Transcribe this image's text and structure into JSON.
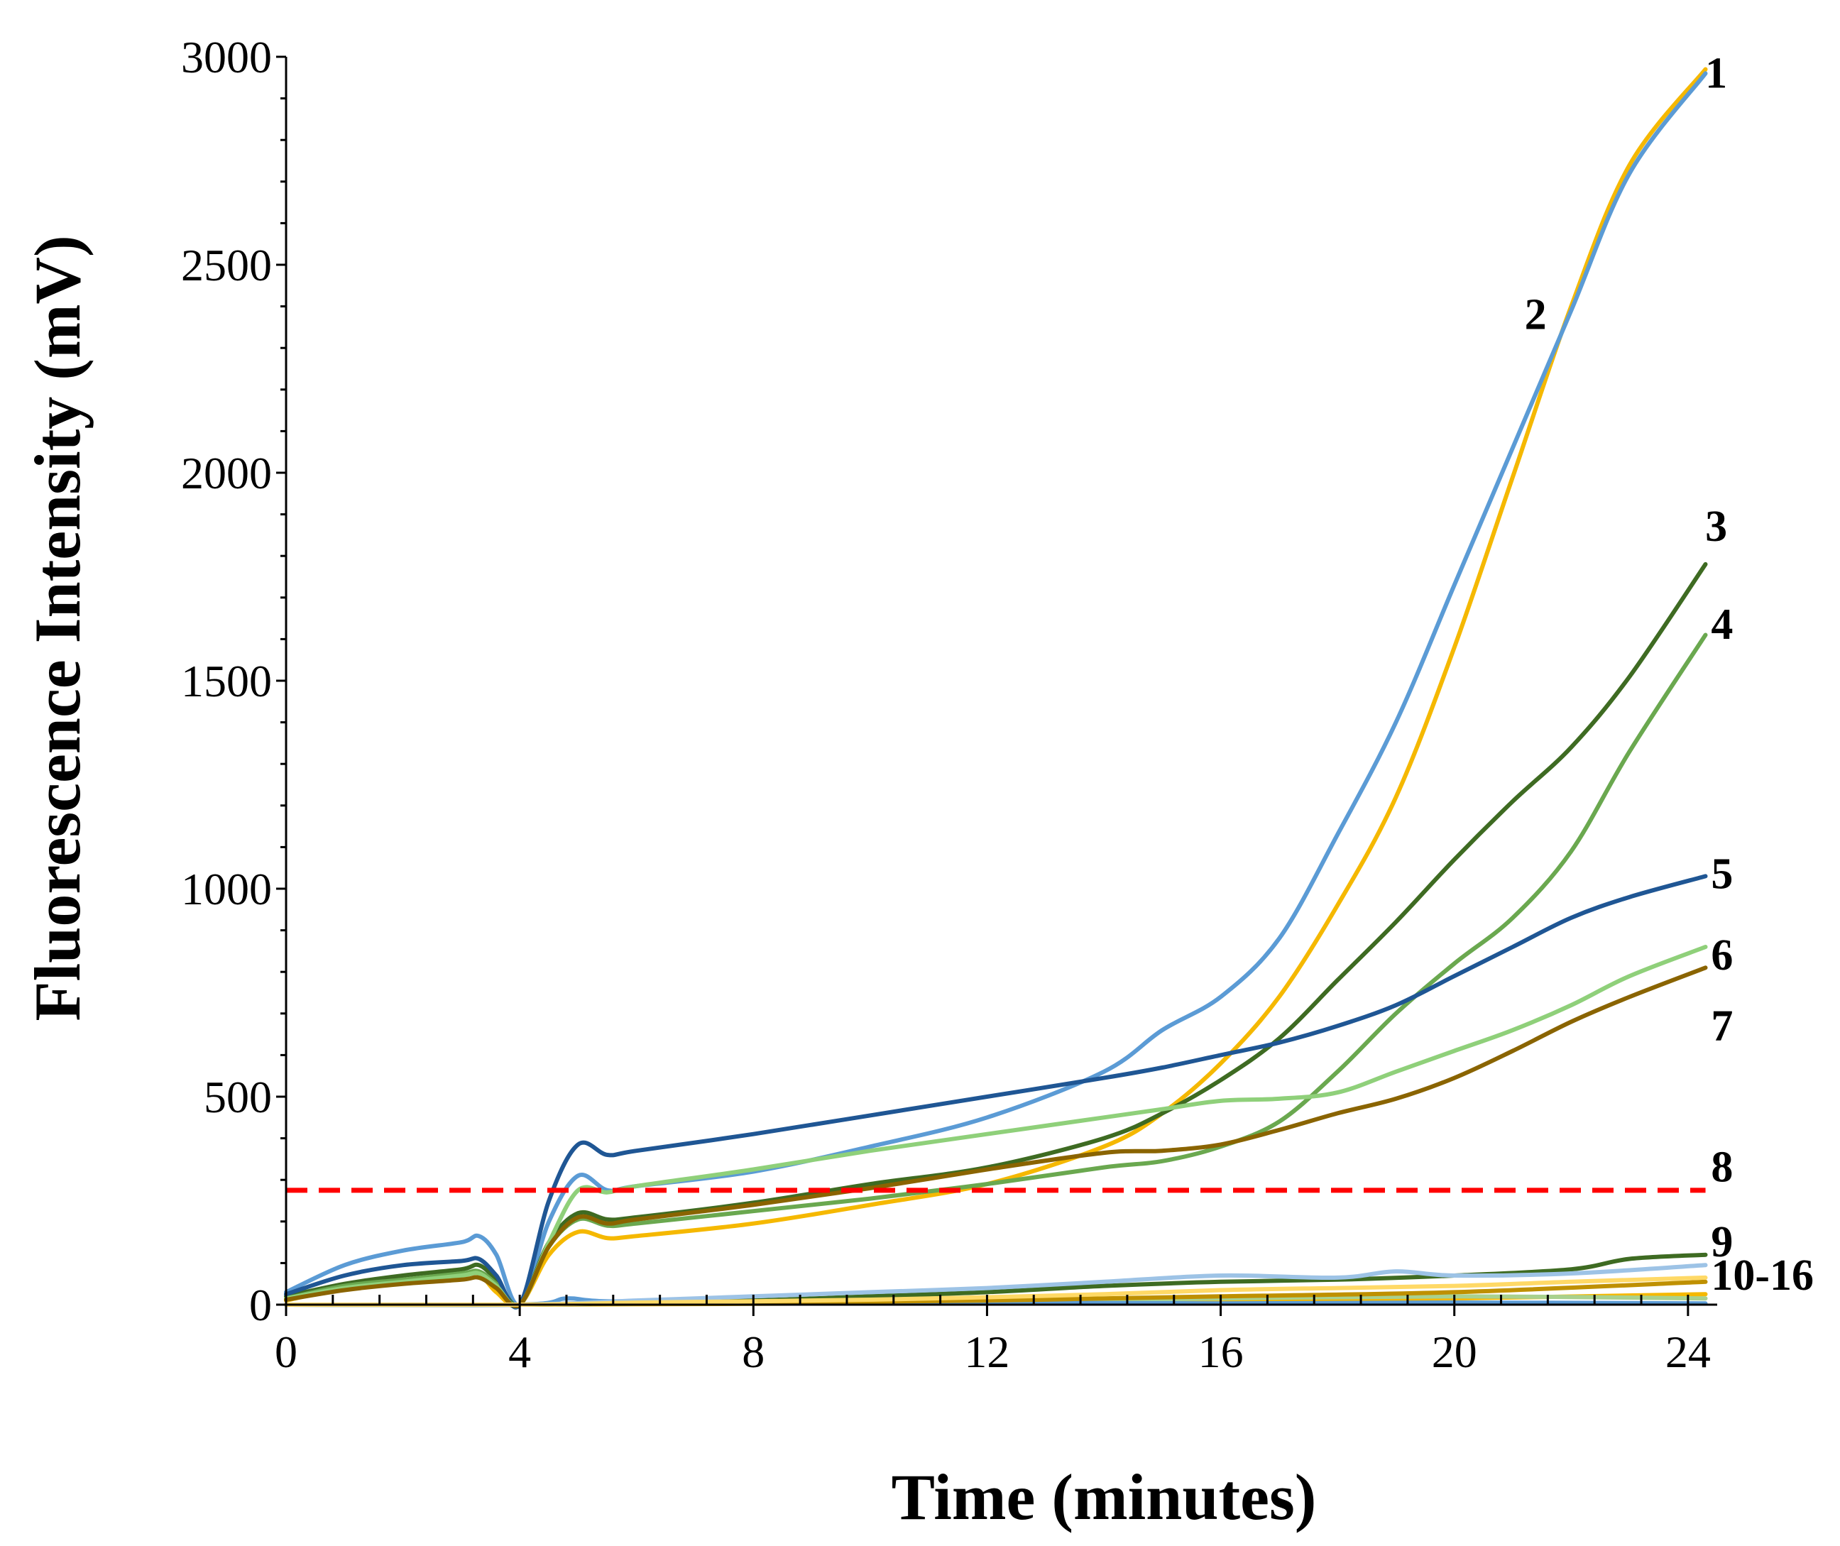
{
  "chart_data": {
    "type": "line",
    "title": "",
    "xlabel": "Time (minutes)",
    "ylabel": "Fluorescence Intensity  (mV)",
    "xlim": [
      0,
      24.5
    ],
    "ylim": [
      0,
      3000
    ],
    "xticks": [
      0,
      4,
      8,
      12,
      16,
      20,
      24
    ],
    "yticks": [
      0,
      500,
      1000,
      1500,
      2000,
      2500,
      3000
    ],
    "x_minor_step": 0.8,
    "grid": false,
    "threshold": {
      "value": 275,
      "x_start": 0,
      "x_end": 24.3,
      "color": "#ff0000",
      "style": "dashed"
    },
    "series": [
      {
        "name": "1",
        "color": "#f5b800",
        "label_x": 24.1,
        "label_y": 2960,
        "x": [
          0,
          1,
          2,
          3,
          3.3,
          3.6,
          4,
          4.5,
          5,
          5.5,
          6,
          8,
          10,
          12,
          14,
          15,
          16,
          17,
          18,
          19,
          20,
          21,
          22,
          23,
          24.3
        ],
        "y": [
          10,
          40,
          55,
          70,
          75,
          30,
          0,
          120,
          175,
          160,
          165,
          195,
          240,
          290,
          380,
          460,
          580,
          740,
          960,
          1220,
          1580,
          1990,
          2400,
          2740,
          2970
        ]
      },
      {
        "name": "2",
        "color": "#5b9bd5",
        "label_x": 21.7,
        "label_y": 2380,
        "x": [
          0,
          1,
          2,
          3,
          3.3,
          3.6,
          4,
          4.5,
          5,
          5.5,
          6,
          8,
          10,
          12,
          14,
          15,
          16,
          17,
          18,
          19,
          20,
          21,
          22,
          23,
          24.3
        ],
        "y": [
          30,
          95,
          130,
          150,
          165,
          120,
          0,
          200,
          310,
          275,
          285,
          320,
          380,
          450,
          560,
          660,
          740,
          880,
          1130,
          1400,
          1730,
          2060,
          2390,
          2720,
          2960
        ]
      },
      {
        "name": "3",
        "color": "#3e6b22",
        "label_x": 24.1,
        "label_y": 1870,
        "x": [
          0,
          1,
          2,
          3,
          3.3,
          3.6,
          4,
          4.5,
          5,
          5.5,
          6,
          8,
          10,
          12,
          14,
          15,
          16,
          17,
          18,
          19,
          20,
          21,
          22,
          23,
          24.3
        ],
        "y": [
          20,
          50,
          70,
          85,
          95,
          60,
          0,
          150,
          220,
          205,
          210,
          245,
          290,
          330,
          400,
          460,
          540,
          640,
          780,
          920,
          1070,
          1210,
          1340,
          1510,
          1780
        ]
      },
      {
        "name": "4",
        "color": "#6aa84f",
        "label_x": 24.2,
        "label_y": 1635,
        "x": [
          0,
          1,
          2,
          3,
          3.3,
          3.6,
          4,
          4.5,
          5,
          5.5,
          6,
          8,
          10,
          12,
          14,
          15,
          16,
          17,
          18,
          19,
          20,
          21,
          22,
          23,
          24.3
        ],
        "y": [
          15,
          45,
          60,
          75,
          80,
          50,
          0,
          140,
          205,
          190,
          195,
          225,
          255,
          290,
          330,
          345,
          380,
          440,
          560,
          700,
          820,
          930,
          1090,
          1330,
          1610
        ]
      },
      {
        "name": "5",
        "color": "#1f5694",
        "label_x": 24.2,
        "label_y": 1035,
        "x": [
          0,
          1,
          2,
          3,
          3.3,
          3.6,
          4,
          4.5,
          5,
          5.5,
          6,
          8,
          10,
          12,
          14,
          15,
          16,
          17,
          18,
          19,
          20,
          21,
          22,
          23,
          24.3
        ],
        "y": [
          25,
          70,
          95,
          105,
          110,
          70,
          0,
          250,
          385,
          360,
          370,
          410,
          455,
          500,
          545,
          570,
          600,
          630,
          670,
          720,
          790,
          860,
          930,
          980,
          1030
        ]
      },
      {
        "name": "6",
        "color": "#8fd07a",
        "label_x": 24.2,
        "label_y": 840,
        "x": [
          0,
          1,
          2,
          3,
          3.3,
          3.6,
          4,
          4.5,
          5,
          5.5,
          6,
          8,
          10,
          12,
          14,
          15,
          16,
          17,
          18,
          19,
          20,
          21,
          22,
          23,
          24.3
        ],
        "y": [
          15,
          40,
          55,
          70,
          75,
          45,
          0,
          150,
          275,
          270,
          285,
          325,
          370,
          410,
          450,
          470,
          490,
          495,
          510,
          560,
          610,
          660,
          720,
          790,
          860
        ]
      },
      {
        "name": "7",
        "color": "#8a6400",
        "label_x": 24.2,
        "label_y": 670,
        "x": [
          0,
          1,
          2,
          3,
          3.3,
          3.6,
          4,
          4.5,
          5,
          5.5,
          6,
          8,
          10,
          12,
          14,
          15,
          16,
          17,
          18,
          19,
          20,
          21,
          22,
          23,
          24.3
        ],
        "y": [
          12,
          35,
          50,
          60,
          65,
          40,
          0,
          140,
          210,
          195,
          205,
          240,
          280,
          325,
          365,
          370,
          385,
          420,
          460,
          495,
          545,
          610,
          680,
          740,
          810
        ]
      },
      {
        "name": "8",
        "color": "#3e6b22",
        "label_x": 24.2,
        "label_y": 330,
        "x": [
          0,
          4,
          6,
          8,
          10,
          12,
          14,
          16,
          18,
          20,
          22,
          23,
          24.3
        ],
        "y": [
          0,
          0,
          5,
          10,
          20,
          30,
          45,
          55,
          60,
          70,
          85,
          110,
          120
        ]
      },
      {
        "name": "9",
        "color": "#9dc3e6",
        "label_x": 24.2,
        "label_y": 150,
        "x": [
          0,
          4,
          6,
          8,
          10,
          12,
          14,
          16,
          18,
          19,
          20,
          22,
          24.3
        ],
        "y": [
          0,
          0,
          10,
          20,
          30,
          40,
          55,
          70,
          65,
          80,
          70,
          75,
          95
        ]
      },
      {
        "name": "10-16",
        "color": "#ffd966",
        "label_x": 24.2,
        "label_y": 70,
        "x": [
          0,
          4,
          6,
          8,
          10,
          12,
          14,
          16,
          18,
          20,
          22,
          24.3
        ],
        "y": [
          0,
          0,
          5,
          8,
          12,
          18,
          25,
          35,
          40,
          45,
          55,
          65
        ]
      },
      {
        "name": "",
        "color": "#f5b800",
        "x": [
          0,
          4,
          8,
          12,
          16,
          20,
          24.3
        ],
        "y": [
          0,
          0,
          2,
          5,
          8,
          15,
          25
        ]
      },
      {
        "name": "",
        "color": "#a9d18e",
        "x": [
          0,
          4,
          8,
          12,
          16,
          20,
          24.3
        ],
        "y": [
          0,
          0,
          5,
          8,
          15,
          20,
          15
        ]
      },
      {
        "name": "",
        "color": "#5b9bd5",
        "x": [
          0,
          4,
          4.8,
          5.5,
          8,
          12,
          16,
          20,
          24.3
        ],
        "y": [
          0,
          0,
          15,
          8,
          5,
          5,
          3,
          5,
          3
        ]
      },
      {
        "name": "",
        "color": "#bf9000",
        "x": [
          0,
          4,
          8,
          12,
          14,
          16,
          20,
          24.3
        ],
        "y": [
          0,
          0,
          5,
          10,
          15,
          20,
          30,
          55
        ]
      }
    ]
  }
}
